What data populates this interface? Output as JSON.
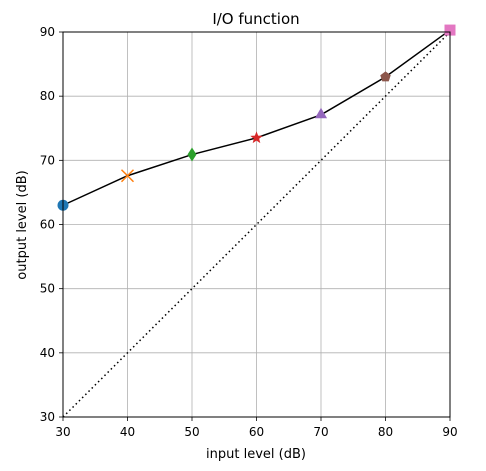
{
  "chart_data": {
    "type": "line",
    "title": "I/O function",
    "xlabel": "input level (dB)",
    "ylabel": "output level (dB)",
    "xlim": [
      30,
      90
    ],
    "ylim": [
      30,
      90
    ],
    "grid": true,
    "xticks": [
      30,
      40,
      50,
      60,
      70,
      80,
      90
    ],
    "yticks": [
      30,
      40,
      50,
      60,
      70,
      80,
      90
    ],
    "series": [
      {
        "style": "solid",
        "color": "#000000",
        "x": [
          30,
          40,
          50,
          60,
          70,
          80,
          90
        ],
        "y": [
          63.0,
          67.6,
          70.9,
          73.5,
          77.1,
          83.0,
          90.3
        ]
      },
      {
        "style": "dotted",
        "color": "#000000",
        "x": [
          30,
          90
        ],
        "y": [
          30,
          90
        ]
      }
    ],
    "markers": [
      {
        "x": 30,
        "y": 63.0,
        "shape": "circle",
        "color": "#1f77b4"
      },
      {
        "x": 40,
        "y": 67.6,
        "shape": "x",
        "color": "#ff7f0e"
      },
      {
        "x": 50,
        "y": 70.9,
        "shape": "diamond",
        "color": "#2ca02c"
      },
      {
        "x": 60,
        "y": 73.5,
        "shape": "star",
        "color": "#d62728"
      },
      {
        "x": 70,
        "y": 77.1,
        "shape": "triangle",
        "color": "#9467bd"
      },
      {
        "x": 80,
        "y": 83.0,
        "shape": "pentagon",
        "color": "#8c564b"
      },
      {
        "x": 90,
        "y": 90.3,
        "shape": "square",
        "color": "#e377c2"
      }
    ]
  }
}
